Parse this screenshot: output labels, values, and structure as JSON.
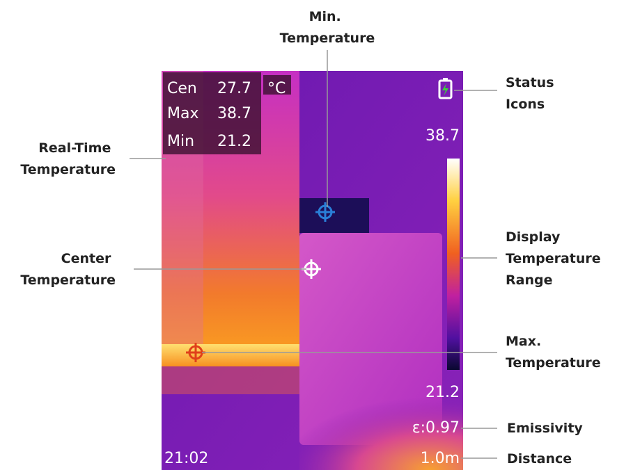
{
  "screen": {
    "readings": [
      {
        "label": "Cen",
        "value": "27.7"
      },
      {
        "label": "Max",
        "value": "38.7"
      },
      {
        "label": "Min",
        "value": "21.2"
      }
    ],
    "unit": "°C",
    "range_max": "38.7",
    "range_min": "21.2",
    "emissivity": "ε:0.97",
    "distance": "1.0m",
    "time": "21:02"
  },
  "callouts": {
    "min_temperature": [
      "Min.",
      "Temperature"
    ],
    "status_icons": [
      "Status",
      "Icons"
    ],
    "real_time_temperature": [
      "Real-Time",
      "Temperature"
    ],
    "display_temperature_range": [
      "Display",
      "Temperature",
      "Range"
    ],
    "center_temperature": [
      "Center",
      "Temperature"
    ],
    "max_temperature": [
      "Max.",
      "Temperature"
    ],
    "emissivity": "Emissivity",
    "distance": "Distance"
  }
}
